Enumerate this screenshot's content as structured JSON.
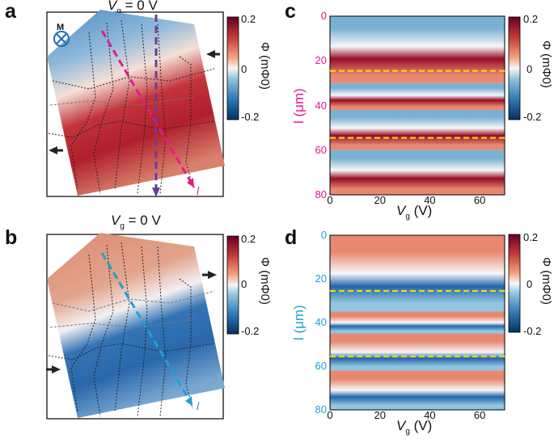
{
  "panels": {
    "a": {
      "letter": "a",
      "title_prefix": "V",
      "title_sub": "g",
      "title_suffix": " = 0 V",
      "magnet_label": "M",
      "cut_label": "l"
    },
    "b": {
      "letter": "b",
      "title_prefix": "V",
      "title_sub": "g",
      "title_suffix": " = 0 V",
      "cut_label": "l"
    },
    "c": {
      "letter": "c"
    },
    "d": {
      "letter": "d"
    }
  },
  "colorbars": {
    "top": {
      "max": "0.2",
      "mid": "0",
      "min": "-0.2",
      "label": "Φ (mΦ0)"
    },
    "bottom": {
      "max": "0.2",
      "mid": "0",
      "min": "-0.2",
      "label": "Φ (mΦ0)"
    }
  },
  "colors": {
    "red": "#b2182b",
    "blue": "#2166ac",
    "magenta": "#e6198c",
    "purple": "#6a3d9a",
    "cyan": "#1f9fd6",
    "yellow": "#ffd400"
  },
  "chart_data": [
    {
      "type": "heatmap",
      "panel": "c",
      "xlabel_prefix": "V",
      "xlabel_sub": "g",
      "xlabel_suffix": " (V)",
      "ylabel": "l (μm)",
      "xticks": [
        "0",
        "20",
        "40",
        "60"
      ],
      "yticks": [
        "0",
        "20",
        "40",
        "60",
        "80"
      ],
      "xlim": [
        0,
        70
      ],
      "ylim": [
        80,
        0
      ],
      "cut_lines_um": [
        24.5,
        54.5
      ],
      "bands": [
        {
          "from_um": 0,
          "to_um": 30,
          "flux": -0.12
        },
        {
          "from_um": 30,
          "to_um": 42,
          "flux": 0.0
        },
        {
          "from_um": 42,
          "to_um": 60,
          "flux": 0.22
        },
        {
          "from_um": 60,
          "to_um": 80,
          "flux": 0.12
        }
      ]
    },
    {
      "type": "heatmap",
      "panel": "d",
      "xlabel_prefix": "V",
      "xlabel_sub": "g",
      "xlabel_suffix": " (V)",
      "ylabel": "l (μm)",
      "xticks": [
        "0",
        "20",
        "40",
        "60"
      ],
      "yticks": [
        "0",
        "20",
        "40",
        "60",
        "80"
      ],
      "xlim": [
        0,
        70
      ],
      "ylim": [
        80,
        0
      ],
      "cut_lines_um": [
        25.5,
        55.5
      ],
      "bands": [
        {
          "from_um": 0,
          "to_um": 35,
          "flux": 0.12
        },
        {
          "from_um": 35,
          "to_um": 45,
          "flux": 0.0
        },
        {
          "from_um": 45,
          "to_um": 62,
          "flux": -0.2
        },
        {
          "from_um": 62,
          "to_um": 80,
          "flux": -0.1
        }
      ]
    }
  ]
}
